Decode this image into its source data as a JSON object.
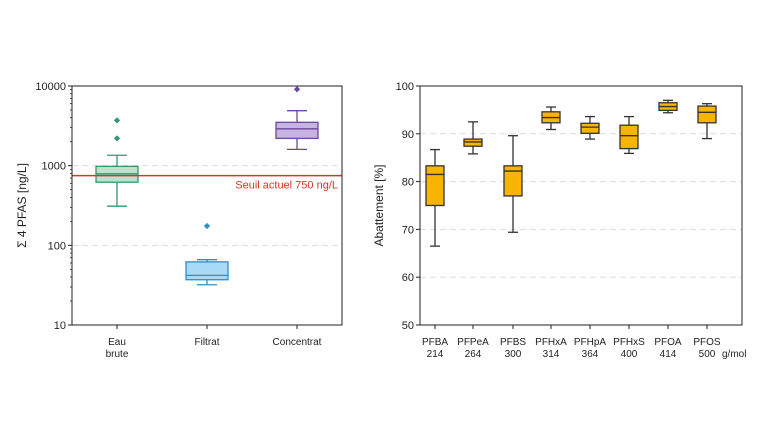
{
  "chart_data": [
    {
      "type": "box",
      "ylabel": "Σ 4 PFAS [ng/L]",
      "yscale": "log",
      "ylim": [
        10,
        10000
      ],
      "y_ticks": [
        10,
        100,
        1000,
        10000
      ],
      "y_tick_labels": [
        "10",
        "100",
        "1000",
        "10000"
      ],
      "gridlines": [
        100,
        1000
      ],
      "threshold": {
        "value": 750,
        "label": "Seuil actuel 750 ng/L",
        "color": "#d9342b"
      },
      "categories": [
        {
          "label_lines": [
            "Eau",
            "brute"
          ],
          "color": "#2e9a6e",
          "fill": "#b9e3cc",
          "min": 310,
          "q1": 620,
          "median": 790,
          "q3": 980,
          "max": 1350,
          "outliers": [
            2200,
            3700
          ]
        },
        {
          "label_lines": [
            "Filtrat"
          ],
          "color": "#2b8fd0",
          "fill": "#a9daf7",
          "min": 32,
          "q1": 37,
          "median": 42,
          "q3": 62,
          "max": 66,
          "outliers": [
            175
          ]
        },
        {
          "label_lines": [
            "Concentrat"
          ],
          "color": "#6a4a9a",
          "fill": "#c7b3e2",
          "min": 1600,
          "q1": 2200,
          "median": 2900,
          "q3": 3500,
          "max": 4900,
          "outliers": [
            9100
          ]
        }
      ]
    },
    {
      "type": "box",
      "ylabel": "Abattement [%]",
      "yscale": "linear",
      "ylim": [
        50,
        100
      ],
      "y_ticks": [
        50,
        60,
        70,
        80,
        90,
        100
      ],
      "gridlines": [
        60,
        70,
        80,
        90
      ],
      "unit_label": "g/mol",
      "box_fill": "#f7b500",
      "box_stroke": "#333333",
      "categories": [
        {
          "name": "PFBA",
          "mass": "214",
          "min": 66.5,
          "q1": 75,
          "median": 81.5,
          "q3": 83.3,
          "max": 86.7
        },
        {
          "name": "PFPeA",
          "mass": "264",
          "min": 85.8,
          "q1": 87.4,
          "median": 88.3,
          "q3": 88.9,
          "max": 92.5
        },
        {
          "name": "PFBS",
          "mass": "300",
          "min": 69.4,
          "q1": 77,
          "median": 82.2,
          "q3": 83.3,
          "max": 89.6
        },
        {
          "name": "PFHxA",
          "mass": "314",
          "min": 90.9,
          "q1": 92.3,
          "median": 93.4,
          "q3": 94.6,
          "max": 95.6
        },
        {
          "name": "PFHpA",
          "mass": "364",
          "min": 88.9,
          "q1": 90.1,
          "median": 91.4,
          "q3": 92.2,
          "max": 93.6
        },
        {
          "name": "PFHxS",
          "mass": "400",
          "min": 85.9,
          "q1": 86.9,
          "median": 89.6,
          "q3": 91.8,
          "max": 93.6
        },
        {
          "name": "PFOA",
          "mass": "414",
          "min": 94.4,
          "q1": 94.9,
          "median": 95.7,
          "q3": 96.5,
          "max": 97
        },
        {
          "name": "PFOS",
          "mass": "500",
          "min": 89,
          "q1": 92.3,
          "median": 94.5,
          "q3": 95.8,
          "max": 96.3
        }
      ]
    }
  ]
}
